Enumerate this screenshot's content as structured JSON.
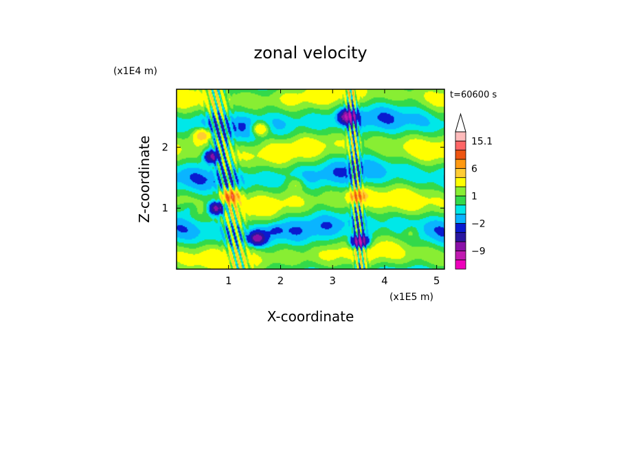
{
  "chart_data": {
    "type": "heatmap",
    "title": "zonal velocity",
    "xlabel": "X-coordinate",
    "ylabel": "Z-coordinate",
    "x_unit": "(x1E5 m)",
    "y_unit": "(x1E4 m)",
    "time_label": "t=60600 s",
    "xlim": [
      0,
      5.15
    ],
    "ylim": [
      0,
      2.95
    ],
    "x_ticks": [
      1,
      2,
      3,
      4,
      5
    ],
    "y_ticks": [
      1,
      2
    ],
    "colorbar": {
      "levels": [
        -15,
        -12,
        -9,
        -6,
        -4,
        -2,
        -1,
        0,
        1,
        2,
        4,
        6,
        9,
        12,
        15.1
      ],
      "colors": [
        "#ee00bb",
        "#c01ab0",
        "#8a10a8",
        "#2a16a0",
        "#0a1ad0",
        "#0ab4ff",
        "#00e8e8",
        "#33d94a",
        "#88ee33",
        "#ffff00",
        "#ffcc33",
        "#ff9911",
        "#ee5511",
        "#ff6666",
        "#ffbbbb"
      ],
      "tick_labels": [
        {
          "label": "15.1",
          "value": 15.1
        },
        {
          "label": "6",
          "value": 6
        },
        {
          "label": "1",
          "value": 1
        },
        {
          "label": "−2",
          "value": -2
        },
        {
          "label": "−9",
          "value": -9
        }
      ],
      "extend": "max"
    },
    "features": [
      {
        "x": 0.78,
        "z": 1.0,
        "value": -9
      },
      {
        "x": 1.05,
        "z": 1.2,
        "value": 9
      },
      {
        "x": 0.68,
        "z": 1.85,
        "value": -8
      },
      {
        "x": 3.3,
        "z": 2.5,
        "value": -9
      },
      {
        "x": 3.52,
        "z": 0.45,
        "value": -12
      },
      {
        "x": 3.48,
        "z": 1.2,
        "value": 7
      },
      {
        "x": 1.55,
        "z": 0.5,
        "value": -7
      },
      {
        "x": 0.5,
        "z": 2.2,
        "value": 6
      },
      {
        "x": 1.6,
        "z": 2.3,
        "value": 5
      },
      {
        "x": 4.5,
        "z": 0.6,
        "value": 2
      },
      {
        "x": 2.3,
        "z": 1.4,
        "value": 2
      },
      {
        "x": 0.25,
        "z": 1.0,
        "value": -1.5
      },
      {
        "x": 1.9,
        "z": 0.65,
        "value": -1.5
      },
      {
        "x": 2.8,
        "z": 0.4,
        "value": -0.5
      }
    ]
  }
}
